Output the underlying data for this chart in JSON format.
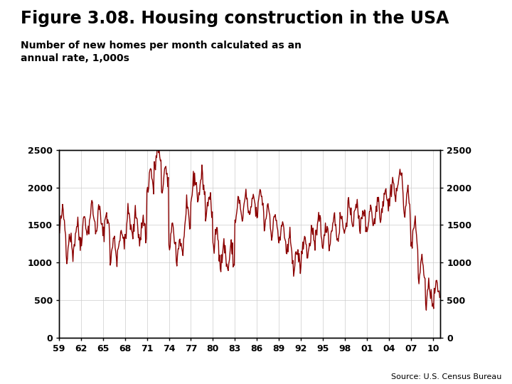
{
  "title": "Figure 3.08. Housing construction in the USA",
  "subtitle": "Number of new homes per month calculated as an\nannual rate, 1,000s",
  "source": "Source: U.S. Census Bureau",
  "line_color": "#8B0000",
  "background_color": "#FFFFFF",
  "plot_bg_color": "#FFFFFF",
  "grid_color": "#CCCCCC",
  "ylim": [
    0,
    2500
  ],
  "yticks": [
    0,
    500,
    1000,
    1500,
    2000,
    2500
  ],
  "xtick_labels": [
    "59",
    "62",
    "65",
    "68",
    "71",
    "74",
    "77",
    "80",
    "83",
    "86",
    "89",
    "92",
    "95",
    "98",
    "01",
    "04",
    "07",
    "10"
  ],
  "xtick_positions": [
    1959,
    1962,
    1965,
    1968,
    1971,
    1974,
    1977,
    1980,
    1983,
    1986,
    1989,
    1992,
    1995,
    1998,
    2001,
    2004,
    2007,
    2010
  ],
  "title_fontsize": 17,
  "subtitle_fontsize": 10,
  "tick_fontsize": 9,
  "source_fontsize": 8,
  "line_width": 1.0,
  "footer_bar_color": "#003399",
  "logo_box_color": "#003380"
}
